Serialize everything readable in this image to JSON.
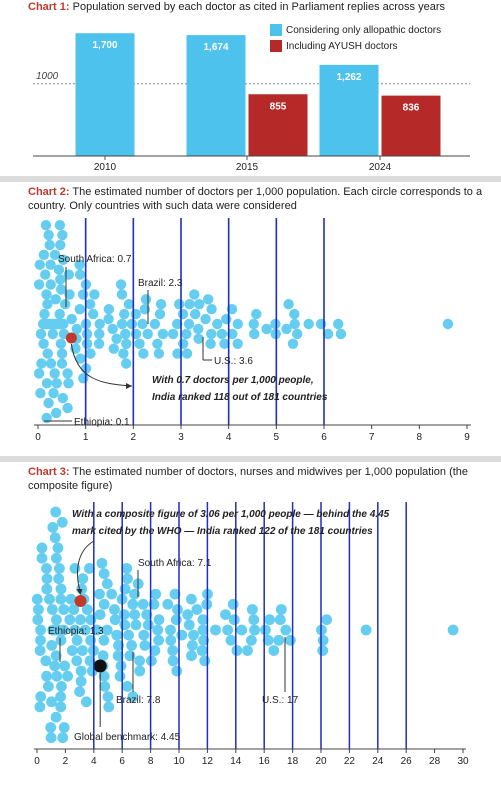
{
  "colors": {
    "allopathic": "#4dc2ec",
    "ayush": "#b52a28",
    "dot": "#64cdf0",
    "india": "#c0392b",
    "benchmark": "#111111",
    "grid": "#1f2fbf"
  },
  "chart1": {
    "title_prefix": "Chart 1:",
    "title_text": "Population served by each doctor as cited in Parliament replies across years",
    "reference_label": "1000"
  },
  "chart2": {
    "title_prefix": "Chart 2:",
    "title_text": "The estimated number of doctors per 1,000 population. Each circle corresponds to a country. Only countries with such data were considered",
    "ann_south_africa": "South Africa: 0.7",
    "ann_brazil": "Brazil: 2.3",
    "ann_us": "U.S.: 3.6",
    "ann_ethiopia": "Ethiopia: 0.1",
    "ann_india_1": "With 0.7 doctors per 1,000 people,",
    "ann_india_2": "India ranked 118 out of 181 countries"
  },
  "chart3": {
    "title_prefix": "Chart 3:",
    "title_text": "The estimated number of doctors, nurses and midwives per 1,000 population (the composite figure)",
    "ann_india_1": "With a composite figure of 3.06 per 1,000 people — behind the 4.45",
    "ann_india_2": "mark cited by the WHO — India ranked 122 of the 181 countries",
    "ann_south_africa": "South Africa: 7.1",
    "ann_ethiopia": "Ethiopia: 1.3",
    "ann_brazil": "Brazil: 7.8",
    "ann_us": "U.S.: 17",
    "ann_benchmark": "Global benchmark: 4.45"
  },
  "chart_data": [
    {
      "type": "bar",
      "title": "Population served by each doctor as cited in Parliament replies across years",
      "categories": [
        "2010",
        "2015",
        "2024"
      ],
      "series": [
        {
          "name": "Considering only allopathic doctors",
          "values": [
            1700,
            1674,
            1262
          ],
          "labels": [
            "1,700",
            "1,674",
            "1,262"
          ]
        },
        {
          "name": "Including AYUSH doctors",
          "values": [
            null,
            855,
            836
          ],
          "labels": [
            "",
            "855",
            "836"
          ]
        }
      ],
      "reference_line": 1000,
      "ylim": [
        0,
        2000
      ]
    },
    {
      "type": "scatter",
      "title": "The estimated number of doctors per 1,000 population. Each circle corresponds to a country. Only countries with such data were considered",
      "xlim": [
        0,
        9
      ],
      "xticks": [
        0,
        1,
        2,
        3,
        4,
        5,
        6,
        7,
        8,
        9
      ],
      "n_countries": 181,
      "highlight": {
        "country": "India",
        "value": 0.7
      },
      "labeled": [
        {
          "country": "South Africa",
          "value": 0.7
        },
        {
          "country": "Brazil",
          "value": 2.3
        },
        {
          "country": "U.S.",
          "value": 3.6
        },
        {
          "country": "Ethiopia",
          "value": 0.1
        }
      ],
      "max_value": 8.6
    },
    {
      "type": "scatter",
      "title": "The estimated number of doctors, nurses and midwives per 1,000 population (the composite figure)",
      "xlim": [
        0,
        30
      ],
      "xticks": [
        0,
        2,
        4,
        6,
        8,
        10,
        12,
        14,
        16,
        18,
        20,
        22,
        24,
        26,
        28,
        30
      ],
      "n_countries": 181,
      "highlight": {
        "country": "India",
        "value": 3.06
      },
      "benchmark": 4.45,
      "labeled": [
        {
          "country": "South Africa",
          "value": 7.1
        },
        {
          "country": "Ethiopia",
          "value": 1.3
        },
        {
          "country": "Brazil",
          "value": 7.8
        },
        {
          "country": "U.S.",
          "value": 17
        }
      ],
      "max_value": 29.3
    }
  ]
}
